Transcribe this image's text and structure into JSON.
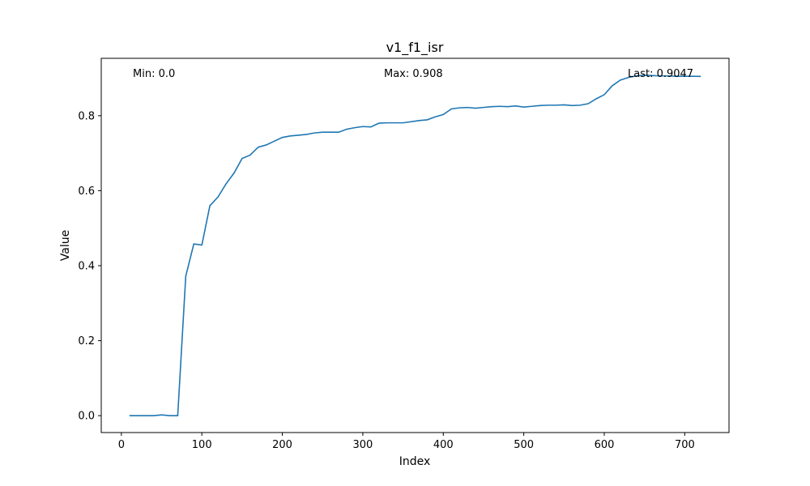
{
  "chart_data": {
    "type": "line",
    "title": "v1_f1_isr",
    "xlabel": "Index",
    "ylabel": "Value",
    "xlim": [
      -25,
      755
    ],
    "ylim": [
      -0.045,
      0.953
    ],
    "xticks": [
      0,
      100,
      200,
      300,
      400,
      500,
      600,
      700
    ],
    "yticks": [
      0.0,
      0.2,
      0.4,
      0.6,
      0.8
    ],
    "grid": false,
    "line_color": "#1f77b4",
    "annotations": {
      "min": "Min: 0.0",
      "max": "Max: 0.908",
      "last": "Last: 0.9047"
    },
    "series": [
      {
        "x": [
          10,
          20,
          30,
          40,
          50,
          60,
          70,
          80,
          90,
          100,
          110,
          120,
          130,
          140,
          150,
          160,
          170,
          180,
          190,
          200,
          210,
          220,
          230,
          240,
          250,
          260,
          270,
          280,
          290,
          300,
          310,
          320,
          330,
          340,
          350,
          360,
          370,
          380,
          390,
          400,
          410,
          420,
          430,
          440,
          450,
          460,
          470,
          480,
          490,
          500,
          510,
          520,
          530,
          540,
          550,
          560,
          570,
          580,
          590,
          600,
          610,
          620,
          630,
          640,
          650,
          660,
          670,
          680,
          690,
          700,
          710,
          720
        ],
        "values": [
          0.0,
          0.0,
          0.0,
          0.0,
          0.002,
          0.0,
          0.0,
          0.372,
          0.458,
          0.455,
          0.56,
          0.583,
          0.618,
          0.647,
          0.686,
          0.695,
          0.716,
          0.722,
          0.732,
          0.742,
          0.746,
          0.748,
          0.75,
          0.754,
          0.756,
          0.756,
          0.756,
          0.764,
          0.768,
          0.771,
          0.77,
          0.78,
          0.781,
          0.781,
          0.781,
          0.784,
          0.787,
          0.789,
          0.797,
          0.803,
          0.818,
          0.821,
          0.822,
          0.82,
          0.822,
          0.824,
          0.825,
          0.824,
          0.826,
          0.823,
          0.825,
          0.827,
          0.828,
          0.828,
          0.829,
          0.827,
          0.828,
          0.832,
          0.845,
          0.856,
          0.88,
          0.895,
          0.902,
          0.906,
          0.908,
          0.907,
          0.906,
          0.906,
          0.905,
          0.905,
          0.905,
          0.9047
        ]
      }
    ]
  }
}
